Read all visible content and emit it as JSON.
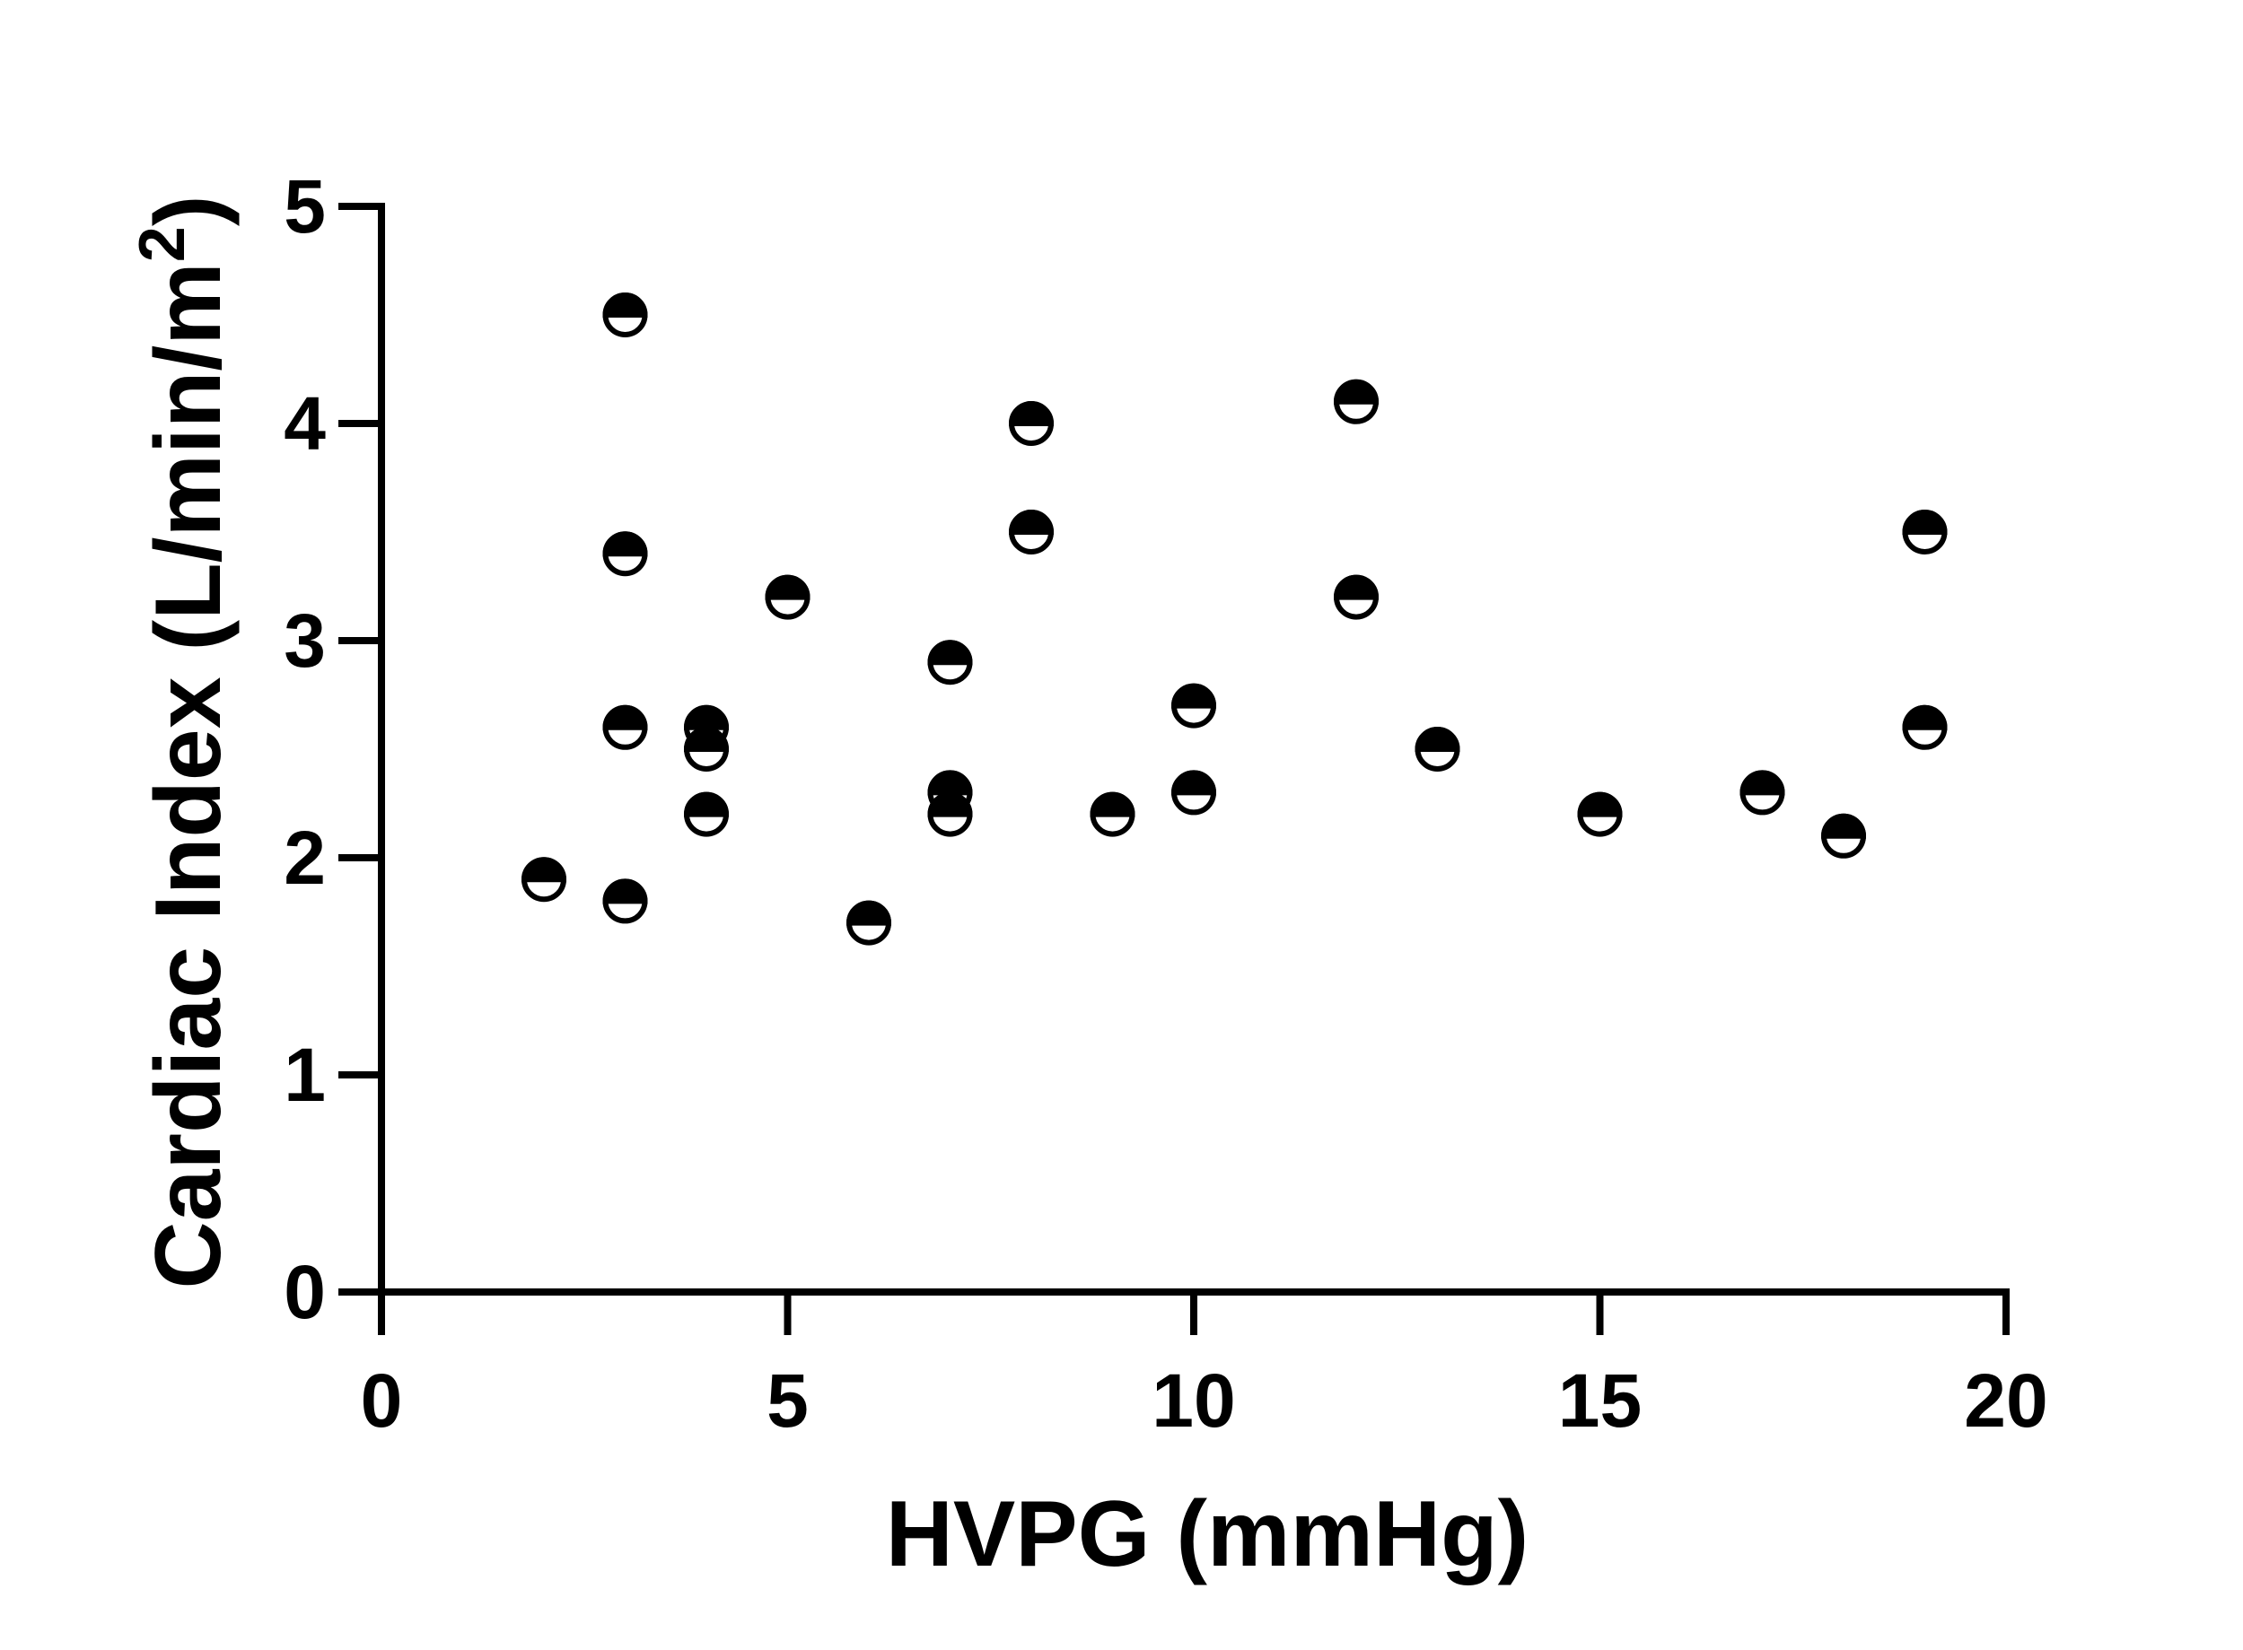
{
  "chart_data": {
    "type": "scatter",
    "xlabel": "HVPG (mmHg)",
    "ylabel_main": "Cardiac Index (L/min/m",
    "ylabel_sup": "2",
    "ylabel_close": ")",
    "xlim": [
      0,
      20
    ],
    "ylim": [
      0,
      5
    ],
    "xticks": [
      0,
      5,
      10,
      15,
      20
    ],
    "yticks": [
      0,
      1,
      2,
      3,
      4,
      5
    ],
    "xtick_labels": [
      "0",
      "5",
      "10",
      "15",
      "20"
    ],
    "ytick_labels": [
      "0",
      "1",
      "2",
      "3",
      "4",
      "5"
    ],
    "marker": "half-filled-circle",
    "marker_color": "#000000",
    "grid": false,
    "points": [
      {
        "x": 2,
        "y": 1.9
      },
      {
        "x": 3,
        "y": 4.5
      },
      {
        "x": 3,
        "y": 3.4
      },
      {
        "x": 3,
        "y": 2.6
      },
      {
        "x": 3,
        "y": 1.8
      },
      {
        "x": 4,
        "y": 2.6
      },
      {
        "x": 4,
        "y": 2.5
      },
      {
        "x": 4,
        "y": 2.2
      },
      {
        "x": 5,
        "y": 3.2
      },
      {
        "x": 6,
        "y": 1.7
      },
      {
        "x": 7,
        "y": 2.9
      },
      {
        "x": 7,
        "y": 2.3
      },
      {
        "x": 7,
        "y": 2.2
      },
      {
        "x": 8,
        "y": 4.0
      },
      {
        "x": 8,
        "y": 3.5
      },
      {
        "x": 9,
        "y": 2.2
      },
      {
        "x": 10,
        "y": 2.7
      },
      {
        "x": 10,
        "y": 2.3
      },
      {
        "x": 12,
        "y": 4.1
      },
      {
        "x": 12,
        "y": 3.2
      },
      {
        "x": 13,
        "y": 2.5
      },
      {
        "x": 15,
        "y": 2.2
      },
      {
        "x": 17,
        "y": 2.3
      },
      {
        "x": 18,
        "y": 2.1
      },
      {
        "x": 19,
        "y": 3.5
      },
      {
        "x": 19,
        "y": 2.6
      }
    ]
  }
}
